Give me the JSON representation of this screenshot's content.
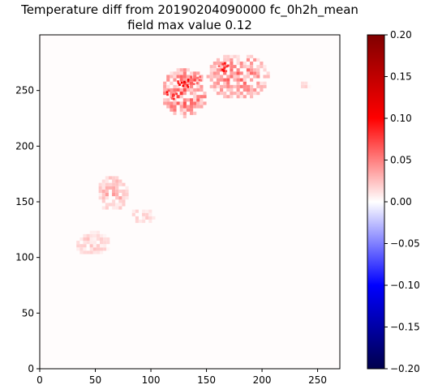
{
  "chart_data": {
    "type": "heatmap",
    "title_lines": [
      "Temperature diff from 20190204090000 fc_0h2h_mean",
      "field max value 0.12"
    ],
    "xlim": [
      0,
      270
    ],
    "ylim": [
      0,
      300
    ],
    "x_ticks": [
      0,
      50,
      100,
      150,
      200,
      250
    ],
    "y_ticks": [
      0,
      50,
      100,
      150,
      200,
      250
    ],
    "colorbar": {
      "colormap": "seismic",
      "vmin": -0.2,
      "vmax": 0.2,
      "ticks": [
        -0.2,
        -0.15,
        -0.1,
        -0.05,
        0.0,
        0.05,
        0.1,
        0.15,
        0.2
      ],
      "tick_labels": [
        "−0.20",
        "−0.15",
        "−0.10",
        "−0.05",
        "0.00",
        "0.05",
        "0.10",
        "0.15",
        "0.20"
      ]
    },
    "background_value": 0.001,
    "regions": [
      {
        "x": [
          30,
          62
        ],
        "y": [
          100,
          122
        ],
        "value": 0.02
      },
      {
        "x": [
          50,
          78
        ],
        "y": [
          140,
          172
        ],
        "value": 0.03
      },
      {
        "x": [
          80,
          102
        ],
        "y": [
          128,
          143
        ],
        "value": 0.02
      },
      {
        "x": [
          108,
          150
        ],
        "y": [
          225,
          268
        ],
        "value": 0.06
      },
      {
        "x": [
          150,
          205
        ],
        "y": [
          240,
          282
        ],
        "value": 0.05
      },
      {
        "x": [
          232,
          242
        ],
        "y": [
          249,
          256
        ],
        "value": 0.015
      }
    ],
    "hotspots": [
      {
        "x": 128,
        "y": 255,
        "value": 0.12
      },
      {
        "x": 118,
        "y": 245,
        "value": 0.1
      },
      {
        "x": 165,
        "y": 270,
        "value": 0.1
      },
      {
        "x": 140,
        "y": 258,
        "value": 0.08
      }
    ]
  }
}
